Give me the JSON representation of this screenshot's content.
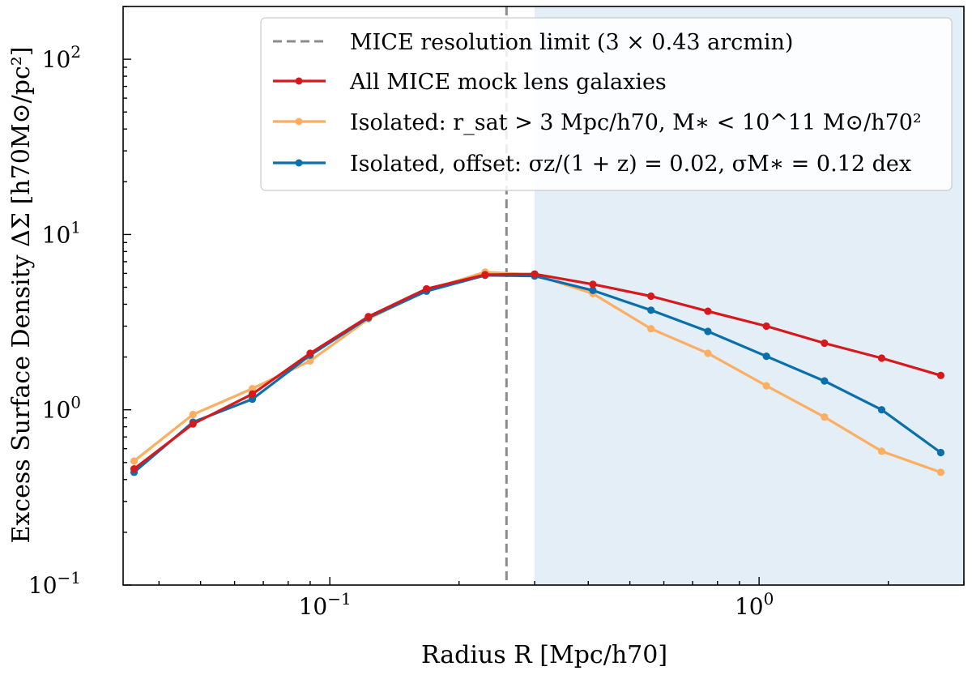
{
  "chart_data": {
    "type": "line",
    "x_scale": "log",
    "y_scale": "log",
    "xlabel": "Radius R [Mpc/h70]",
    "ylabel": "Excess Surface Density ΔΣ [h70M⊙/pc²]",
    "xlim": [
      0.033,
      3.0
    ],
    "ylim": [
      0.1,
      200
    ],
    "x_ticks": [
      {
        "value": 0.1,
        "base": "10",
        "exp": "−1"
      },
      {
        "value": 1.0,
        "base": "10",
        "exp": "0"
      }
    ],
    "y_ticks": [
      {
        "value": 0.1,
        "base": "10",
        "exp": "−1"
      },
      {
        "value": 1,
        "base": "10",
        "exp": "0"
      },
      {
        "value": 10,
        "base": "10",
        "exp": "1"
      },
      {
        "value": 100,
        "base": "10",
        "exp": "2"
      }
    ],
    "shaded_region": {
      "x_from": 0.3,
      "x_to": 3.0,
      "color": "#e3eef6"
    },
    "resolution_limit_x": 0.258,
    "legend_position": "top-right",
    "legend": [
      {
        "label": "MICE resolution limit (3 × 0.43 arcmin)",
        "color": "#8c8c8c",
        "style": "dashed"
      },
      {
        "label": "All MICE mock lens galaxies",
        "color": "#d7191c",
        "style": "solid"
      },
      {
        "label": "Isolated: r_sat > 3 Mpc/h70, M∗ < 10^11 M⊙/h70²",
        "color": "#fdae61",
        "style": "solid"
      },
      {
        "label": "Isolated, offset: σz/(1 + z) = 0.02, σM∗ = 0.12 dex",
        "color": "#0a6fad",
        "style": "solid"
      }
    ],
    "x": [
      0.035,
      0.048,
      0.066,
      0.09,
      0.123,
      0.168,
      0.23,
      0.3,
      0.41,
      0.56,
      0.76,
      1.04,
      1.42,
      1.93,
      2.65
    ],
    "series": [
      {
        "name": "Isolated",
        "color": "#fdae61",
        "values": [
          0.51,
          0.94,
          1.32,
          1.9,
          3.3,
          4.8,
          6.1,
          5.9,
          4.6,
          2.9,
          2.1,
          1.37,
          0.91,
          0.58,
          0.44
        ]
      },
      {
        "name": "Isolated, offset",
        "color": "#0a6fad",
        "values": [
          0.44,
          0.85,
          1.15,
          2.05,
          3.35,
          4.75,
          5.85,
          5.8,
          4.8,
          3.7,
          2.8,
          2.02,
          1.46,
          1.0,
          0.57
        ]
      },
      {
        "name": "All MICE mock lens galaxies",
        "color": "#d7191c",
        "values": [
          0.46,
          0.83,
          1.23,
          2.1,
          3.4,
          4.9,
          5.9,
          5.95,
          5.2,
          4.45,
          3.65,
          3.0,
          2.4,
          1.97,
          1.57
        ]
      }
    ]
  }
}
